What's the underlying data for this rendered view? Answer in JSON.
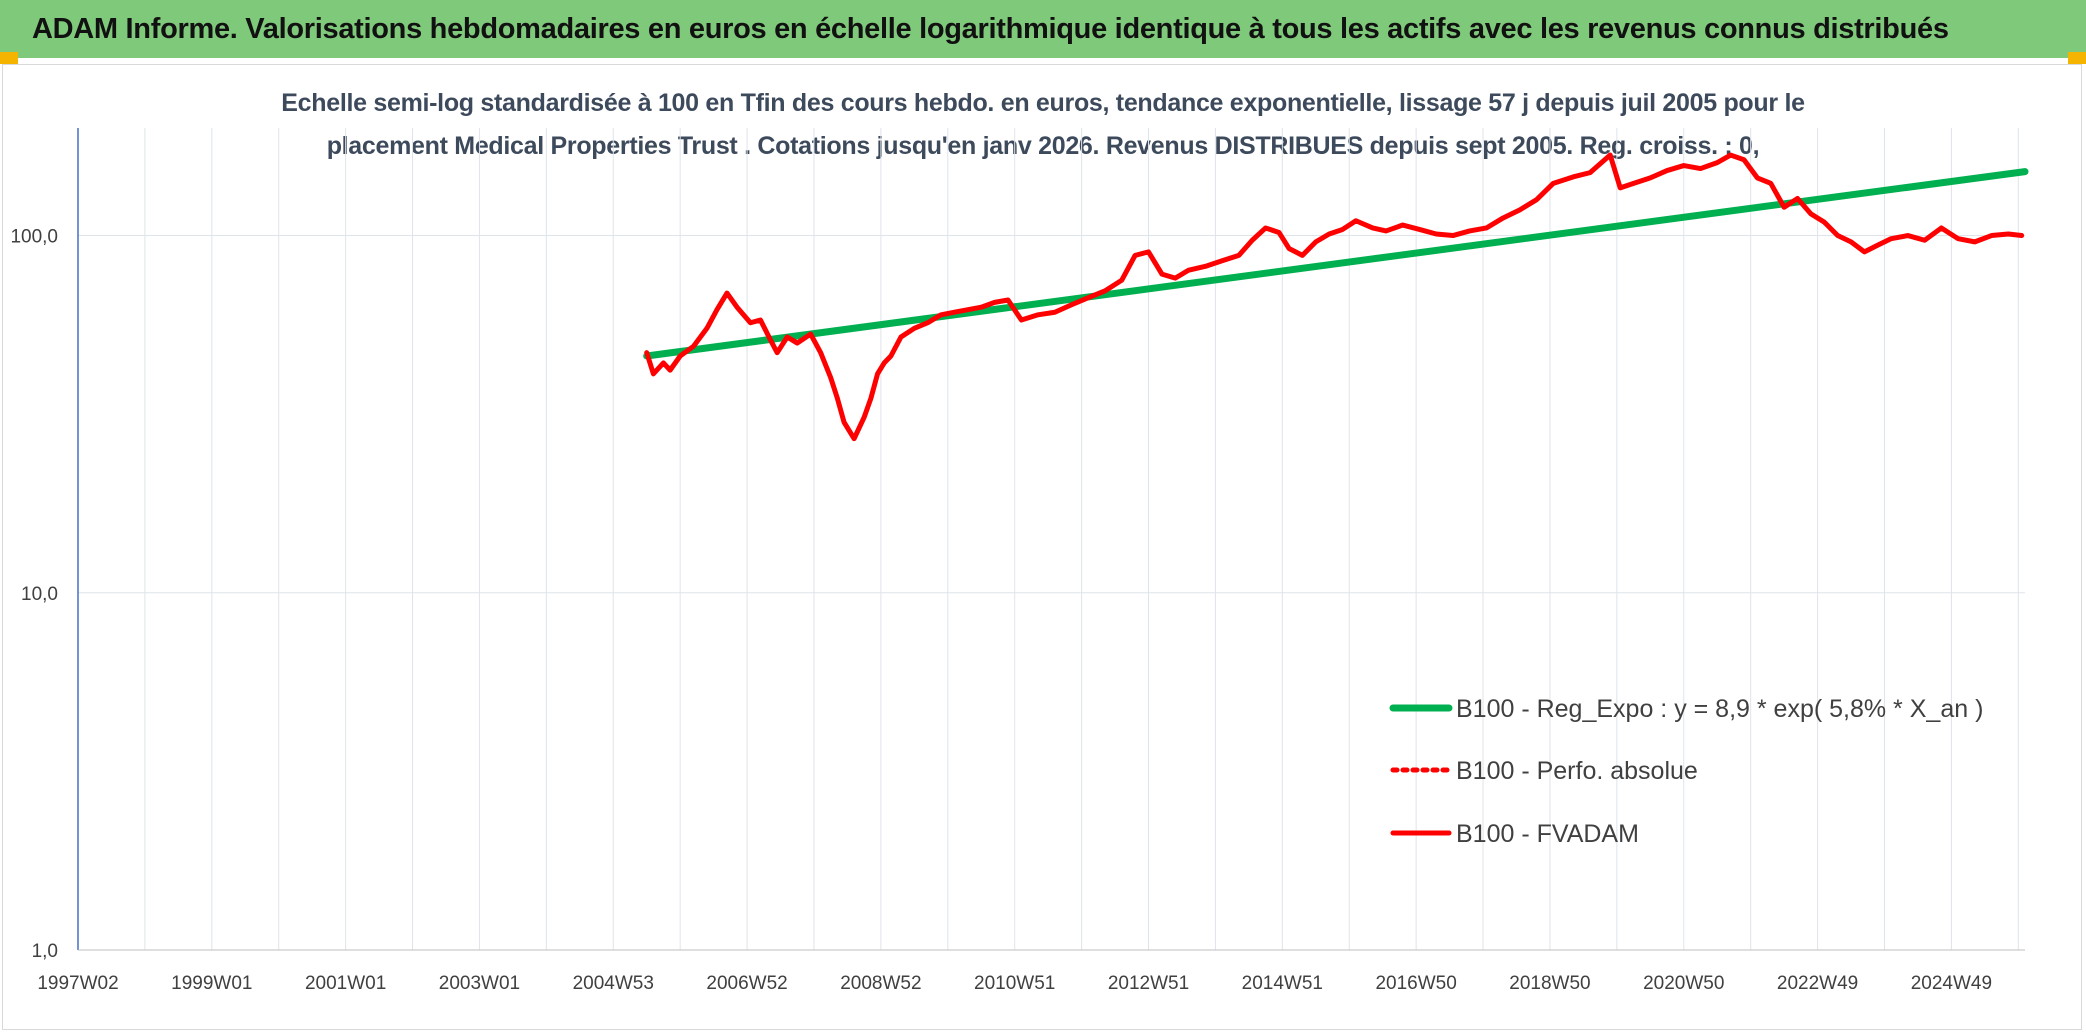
{
  "header": {
    "title": "ADAM Informe. Valorisations hebdomadaires en euros en échelle logarithmique identique à tous les actifs avec les revenus connus distribués"
  },
  "chart_data": {
    "type": "line",
    "title_line1": "Echelle semi-log standardisée à 100 en Tfin des cours hebdo. en euros, tendance exponentielle, lissage 57 j depuis juil 2005 pour le",
    "title_line2": "placement Medical Properties Trust . Cotations jusqu'en janv 2026. Revenus DISTRIBUES depuis sept 2005. Reg. croiss. : 0,",
    "y_scale": "log",
    "ylim": [
      1,
      200
    ],
    "y_ticks": [
      1,
      10,
      100
    ],
    "y_tick_labels": [
      "1,0",
      "10,0",
      "100,0"
    ],
    "x_range": [
      1997.0,
      2026.1
    ],
    "x_ticks": [
      1997.0,
      1999.0,
      2001.0,
      2003.0,
      2005.0,
      2007.0,
      2009.0,
      2011.0,
      2013.0,
      2015.0,
      2017.0,
      2019.0,
      2021.0,
      2023.0,
      2025.0
    ],
    "x_tick_labels": [
      "1997W02",
      "1999W01",
      "2001W01",
      "2003W01",
      "2004W53",
      "2006W52",
      "2008W52",
      "2010W51",
      "2012W51",
      "2014W51",
      "2016W50",
      "2018W50",
      "2020W50",
      "2022W49",
      "2024W49"
    ],
    "grid": true,
    "legend_position": "bottom-right",
    "colors": {
      "trend": "#00b050",
      "fvadam": "#ff0000",
      "perfo": "#ff0000"
    },
    "series": [
      {
        "name": "B100 - Reg_Expo : y = 8,9 * exp( 5,8% *  X_an )",
        "style": "solid",
        "x": [
          2005.5,
          2026.1
        ],
        "y": [
          46,
          151
        ]
      },
      {
        "name": "B100 - Perfo. absolue",
        "style": "dotted",
        "x": [],
        "y": []
      },
      {
        "name": "B100 - FVADAM",
        "style": "solid",
        "x": [
          2005.5,
          2005.6,
          2005.75,
          2005.85,
          2006.0,
          2006.2,
          2006.4,
          2006.55,
          2006.7,
          2006.85,
          2007.05,
          2007.2,
          2007.35,
          2007.45,
          2007.6,
          2007.75,
          2007.95,
          2008.1,
          2008.25,
          2008.35,
          2008.45,
          2008.6,
          2008.75,
          2008.85,
          2008.95,
          2009.05,
          2009.15,
          2009.3,
          2009.5,
          2009.7,
          2009.9,
          2010.1,
          2010.3,
          2010.5,
          2010.7,
          2010.9,
          2011.1,
          2011.35,
          2011.6,
          2011.85,
          2012.1,
          2012.35,
          2012.6,
          2012.8,
          2013.0,
          2013.2,
          2013.4,
          2013.6,
          2013.85,
          2014.1,
          2014.35,
          2014.55,
          2014.75,
          2014.95,
          2015.1,
          2015.3,
          2015.5,
          2015.7,
          2015.9,
          2016.1,
          2016.35,
          2016.55,
          2016.8,
          2017.05,
          2017.3,
          2017.55,
          2017.8,
          2018.05,
          2018.3,
          2018.55,
          2018.8,
          2019.05,
          2019.35,
          2019.6,
          2019.9,
          2020.05,
          2020.25,
          2020.5,
          2020.75,
          2021.0,
          2021.25,
          2021.5,
          2021.7,
          2021.9,
          2022.1,
          2022.3,
          2022.5,
          2022.7,
          2022.9,
          2023.1,
          2023.3,
          2023.5,
          2023.7,
          2023.9,
          2024.1,
          2024.35,
          2024.6,
          2024.85,
          2025.1,
          2025.35,
          2025.6,
          2025.85,
          2026.05
        ],
        "y": [
          47,
          41,
          44,
          42,
          46,
          49,
          55,
          62,
          69,
          63,
          57,
          58,
          51,
          47,
          52,
          50,
          53,
          47,
          40,
          35,
          30,
          27,
          31,
          35,
          41,
          44,
          46,
          52,
          55,
          57,
          60,
          61,
          62,
          63,
          65,
          66,
          58,
          60,
          61,
          64,
          67,
          70,
          75,
          88,
          90,
          78,
          76,
          80,
          82,
          85,
          88,
          97,
          105,
          102,
          92,
          88,
          96,
          101,
          104,
          110,
          105,
          103,
          107,
          104,
          101,
          100,
          103,
          105,
          112,
          118,
          126,
          140,
          146,
          150,
          168,
          136,
          140,
          145,
          152,
          157,
          154,
          160,
          168,
          163,
          145,
          140,
          120,
          127,
          115,
          109,
          100,
          96,
          90,
          94,
          98,
          100,
          97,
          105,
          98,
          96,
          100,
          101,
          100
        ]
      }
    ]
  }
}
